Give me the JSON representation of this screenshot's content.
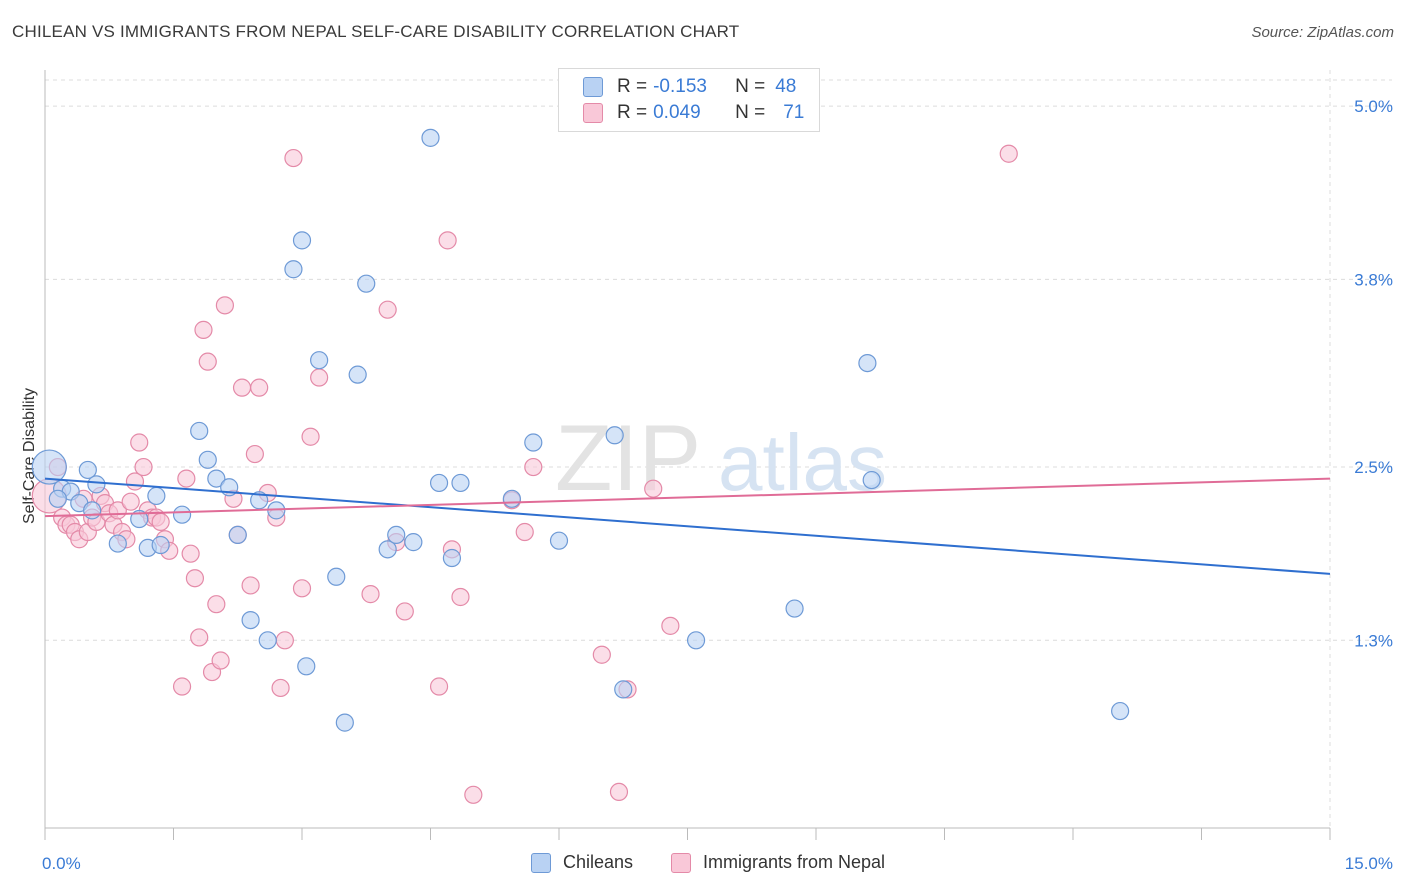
{
  "title": "CHILEAN VS IMMIGRANTS FROM NEPAL SELF-CARE DISABILITY CORRELATION CHART",
  "source": "Source: ZipAtlas.com",
  "watermark": {
    "zip": "ZIP",
    "atlas": "atlas"
  },
  "legend": {
    "rows": [
      {
        "r_label": "R =",
        "r_value": "-0.153",
        "n_label": "N =",
        "n_value": "48"
      },
      {
        "r_label": "R =",
        "r_value": "0.049",
        "n_label": "N =",
        "n_value": "71"
      }
    ]
  },
  "bottom_legend": {
    "series1": "Chileans",
    "series2": "Immigrants from Nepal"
  },
  "colors": {
    "blue_fill": "#b9d2f3",
    "blue_stroke": "#6e9ad6",
    "blue_line": "#2f6fcf",
    "pink_fill": "#f9c8d8",
    "pink_stroke": "#e48aa8",
    "pink_line": "#e06c97",
    "tick_text": "#3a7bd5",
    "grid": "#dcdcdc"
  },
  "chart_data": {
    "type": "scatter",
    "title": "CHILEAN VS IMMIGRANTS FROM NEPAL SELF-CARE DISABILITY CORRELATION CHART",
    "xlabel": "",
    "ylabel": "Self-Care Disability",
    "xlim": [
      0,
      15
    ],
    "ylim": [
      0,
      5.25
    ],
    "x_tick_labels": [
      "0.0%",
      "15.0%"
    ],
    "y_ticks": [
      1.3,
      2.5,
      3.8,
      5.0
    ],
    "y_tick_labels": [
      "1.3%",
      "2.5%",
      "3.8%",
      "5.0%"
    ],
    "grid": true,
    "series": [
      {
        "name": "Chileans",
        "r": -0.153,
        "n": 48,
        "trend": {
          "x": [
            0,
            15
          ],
          "y": [
            2.42,
            1.76
          ]
        },
        "points": [
          [
            0.05,
            2.5
          ],
          [
            0.2,
            2.35
          ],
          [
            0.3,
            2.33
          ],
          [
            0.4,
            2.25
          ],
          [
            0.5,
            2.48
          ],
          [
            0.55,
            2.2
          ],
          [
            0.6,
            2.38
          ],
          [
            0.85,
            1.97
          ],
          [
            1.1,
            2.14
          ],
          [
            1.2,
            1.94
          ],
          [
            1.3,
            2.3
          ],
          [
            1.35,
            1.96
          ],
          [
            1.6,
            2.17
          ],
          [
            1.8,
            2.75
          ],
          [
            1.9,
            2.55
          ],
          [
            2.0,
            2.42
          ],
          [
            2.15,
            2.36
          ],
          [
            2.25,
            2.03
          ],
          [
            2.4,
            1.44
          ],
          [
            2.5,
            2.27
          ],
          [
            2.6,
            1.3
          ],
          [
            2.7,
            2.2
          ],
          [
            2.9,
            3.87
          ],
          [
            3.0,
            4.07
          ],
          [
            3.05,
            1.12
          ],
          [
            3.2,
            3.24
          ],
          [
            3.4,
            1.74
          ],
          [
            3.5,
            0.73
          ],
          [
            3.65,
            3.14
          ],
          [
            3.75,
            3.77
          ],
          [
            4.0,
            1.93
          ],
          [
            4.1,
            2.03
          ],
          [
            4.3,
            1.98
          ],
          [
            4.5,
            4.78
          ],
          [
            4.6,
            2.39
          ],
          [
            4.75,
            1.87
          ],
          [
            4.85,
            2.39
          ],
          [
            5.45,
            2.28
          ],
          [
            5.7,
            2.67
          ],
          [
            6.0,
            1.99
          ],
          [
            6.65,
            2.72
          ],
          [
            6.75,
            0.96
          ],
          [
            7.6,
            1.3
          ],
          [
            8.75,
            1.52
          ],
          [
            9.6,
            3.22
          ],
          [
            9.65,
            2.41
          ],
          [
            12.55,
            0.81
          ],
          [
            0.15,
            2.28
          ]
        ]
      },
      {
        "name": "Immigrants from Nepal",
        "r": 0.049,
        "n": 71,
        "trend": {
          "x": [
            0,
            15
          ],
          "y": [
            2.16,
            2.42
          ]
        },
        "points": [
          [
            0.05,
            2.3
          ],
          [
            0.15,
            2.5
          ],
          [
            0.2,
            2.15
          ],
          [
            0.25,
            2.1
          ],
          [
            0.3,
            2.1
          ],
          [
            0.35,
            2.05
          ],
          [
            0.4,
            2.0
          ],
          [
            0.45,
            2.28
          ],
          [
            0.5,
            2.05
          ],
          [
            0.55,
            2.15
          ],
          [
            0.6,
            2.12
          ],
          [
            0.65,
            2.3
          ],
          [
            0.7,
            2.25
          ],
          [
            0.75,
            2.18
          ],
          [
            0.8,
            2.1
          ],
          [
            0.85,
            2.2
          ],
          [
            0.9,
            2.05
          ],
          [
            0.95,
            2.0
          ],
          [
            1.0,
            2.26
          ],
          [
            1.05,
            2.4
          ],
          [
            1.1,
            2.67
          ],
          [
            1.15,
            2.5
          ],
          [
            1.2,
            2.2
          ],
          [
            1.25,
            2.15
          ],
          [
            1.3,
            2.15
          ],
          [
            1.35,
            2.12
          ],
          [
            1.4,
            2.0
          ],
          [
            1.45,
            1.92
          ],
          [
            1.6,
            0.98
          ],
          [
            1.65,
            2.42
          ],
          [
            1.7,
            1.9
          ],
          [
            1.75,
            1.73
          ],
          [
            1.8,
            1.32
          ],
          [
            1.85,
            3.45
          ],
          [
            1.9,
            3.23
          ],
          [
            1.95,
            1.08
          ],
          [
            2.0,
            1.55
          ],
          [
            2.05,
            1.16
          ],
          [
            2.1,
            3.62
          ],
          [
            2.2,
            2.28
          ],
          [
            2.25,
            2.03
          ],
          [
            2.3,
            3.05
          ],
          [
            2.4,
            1.68
          ],
          [
            2.45,
            2.59
          ],
          [
            2.5,
            3.05
          ],
          [
            2.6,
            2.32
          ],
          [
            2.7,
            2.15
          ],
          [
            2.75,
            0.97
          ],
          [
            2.8,
            1.3
          ],
          [
            2.9,
            4.64
          ],
          [
            3.0,
            1.66
          ],
          [
            3.1,
            2.71
          ],
          [
            3.2,
            3.12
          ],
          [
            3.8,
            1.62
          ],
          [
            4.0,
            3.59
          ],
          [
            4.1,
            1.98
          ],
          [
            4.2,
            1.5
          ],
          [
            4.6,
            0.98
          ],
          [
            4.7,
            4.07
          ],
          [
            4.75,
            1.93
          ],
          [
            4.85,
            1.6
          ],
          [
            5.0,
            0.23
          ],
          [
            5.45,
            2.27
          ],
          [
            5.6,
            2.05
          ],
          [
            5.7,
            2.5
          ],
          [
            6.5,
            1.2
          ],
          [
            6.7,
            0.25
          ],
          [
            6.8,
            0.96
          ],
          [
            7.1,
            2.35
          ],
          [
            7.3,
            1.4
          ],
          [
            11.25,
            4.67
          ]
        ]
      }
    ]
  }
}
